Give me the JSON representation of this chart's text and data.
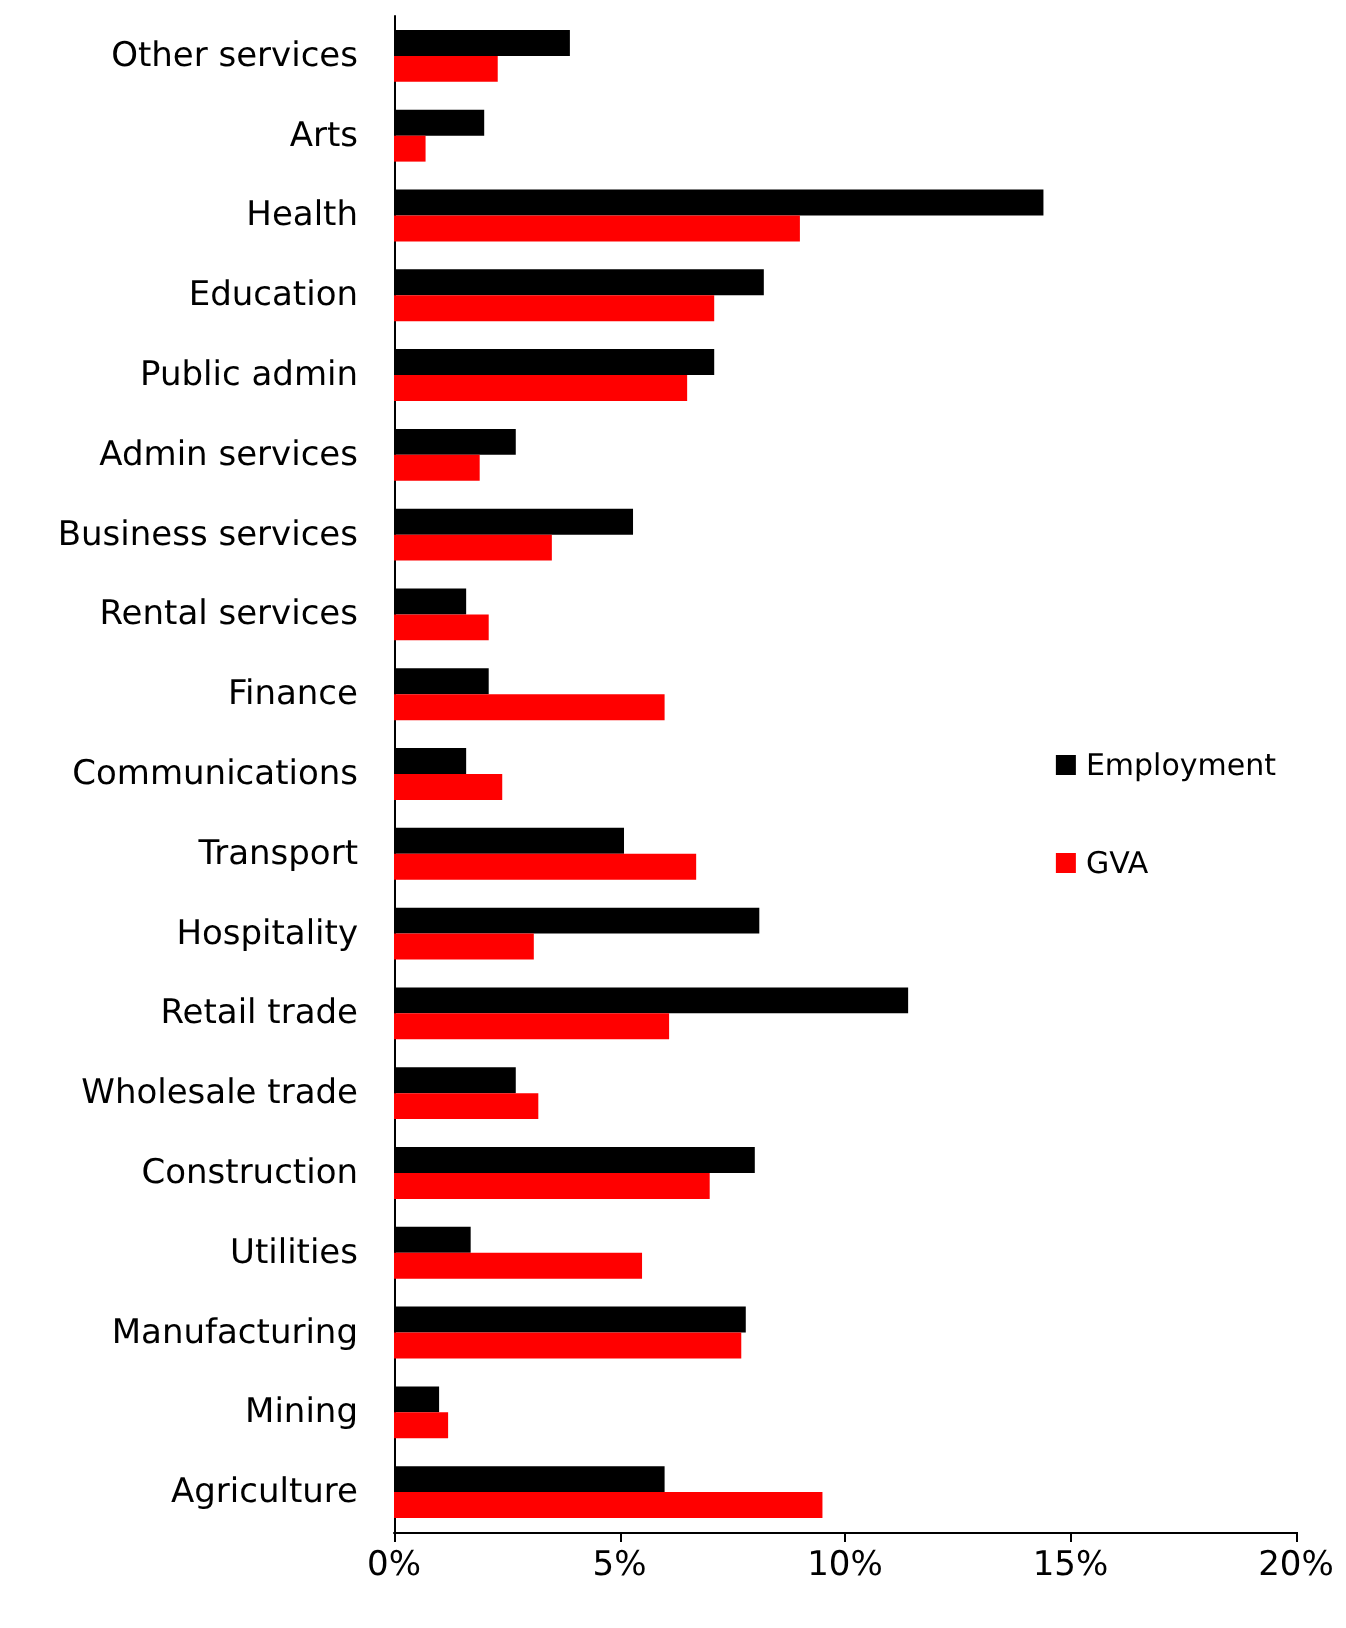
{
  "chart_data": {
    "type": "bar",
    "orientation": "horizontal",
    "categories": [
      "Other services",
      "Arts",
      "Health",
      "Education",
      "Public admin",
      "Admin services",
      "Business services",
      "Rental services",
      "Finance",
      "Communications",
      "Transport",
      "Hospitality",
      "Retail trade",
      "Wholesale trade",
      "Construction",
      "Utilities",
      "Manufacturing",
      "Mining",
      "Agriculture"
    ],
    "series": [
      {
        "name": "Employment",
        "color": "#000000",
        "values": [
          3.9,
          2.0,
          14.4,
          8.2,
          7.1,
          2.7,
          5.3,
          1.6,
          2.1,
          1.6,
          5.1,
          8.1,
          11.4,
          2.7,
          8.0,
          1.7,
          7.8,
          1.0,
          6.0
        ]
      },
      {
        "name": "GVA",
        "color": "#ff0000",
        "values": [
          2.3,
          0.7,
          9.0,
          7.1,
          6.5,
          1.9,
          3.5,
          2.1,
          6.0,
          2.4,
          6.7,
          3.1,
          6.1,
          3.2,
          7.0,
          5.5,
          7.7,
          1.2,
          9.5
        ]
      }
    ],
    "xlim": [
      0,
      20
    ],
    "xticks": [
      {
        "value": 0,
        "label": "0%"
      },
      {
        "value": 5,
        "label": "5%"
      },
      {
        "value": 10,
        "label": "10%"
      },
      {
        "value": 15,
        "label": "15%"
      },
      {
        "value": 20,
        "label": "20%"
      }
    ],
    "grid": false,
    "legend": "right"
  }
}
